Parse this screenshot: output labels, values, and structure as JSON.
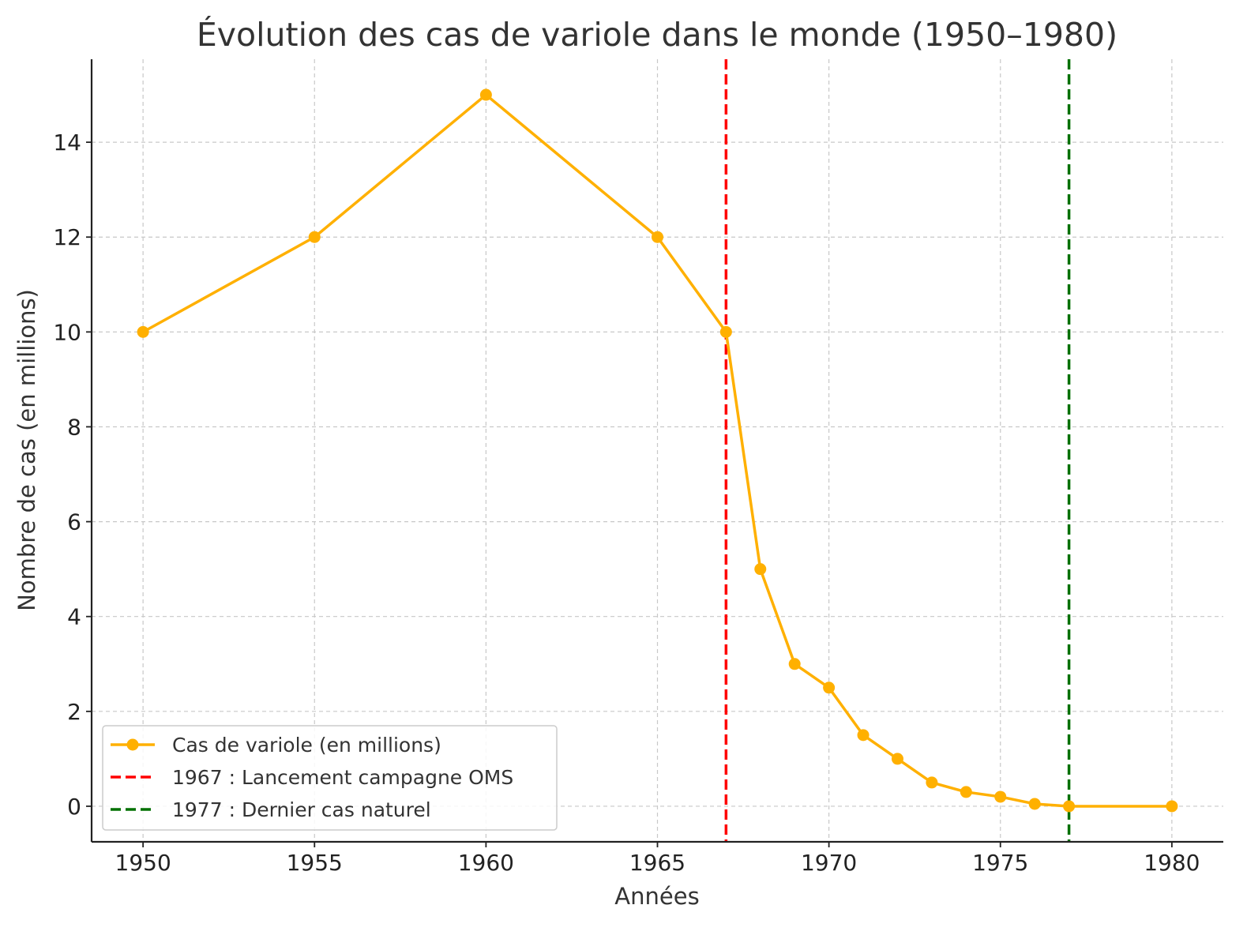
{
  "chart_data": {
    "type": "line",
    "title": "Évolution des cas de variole dans le monde (1950–1980)",
    "xlabel": "Années",
    "ylabel": "Nombre de cas (en millions)",
    "xlim": [
      1948.5,
      1981.5
    ],
    "ylim": [
      -0.75,
      15.75
    ],
    "xticks": [
      1950,
      1955,
      1960,
      1965,
      1970,
      1975,
      1980
    ],
    "yticks": [
      0,
      2,
      4,
      6,
      8,
      10,
      12,
      14
    ],
    "grid": true,
    "legend_position": "lower-left",
    "series": [
      {
        "name": "Cas de variole (en millions)",
        "color": "#FFB000",
        "marker": "circle",
        "x": [
          1950,
          1955,
          1960,
          1965,
          1967,
          1968,
          1969,
          1970,
          1971,
          1972,
          1973,
          1974,
          1975,
          1976,
          1977,
          1980
        ],
        "y": [
          10,
          12,
          15,
          12,
          10,
          5,
          3,
          2.5,
          1.5,
          1,
          0.5,
          0.3,
          0.2,
          0.05,
          0,
          0
        ]
      }
    ],
    "reference_lines": [
      {
        "name": "1967 : Lancement campagne OMS",
        "x": 1967,
        "color": "#FF0000",
        "style": "dashed"
      },
      {
        "name": "1977 : Dernier cas naturel",
        "x": 1977,
        "color": "#007000",
        "style": "dashed"
      }
    ]
  }
}
